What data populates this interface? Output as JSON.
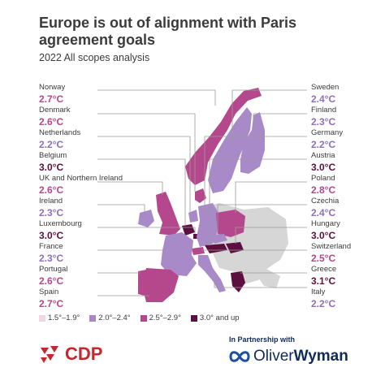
{
  "title": "Europe is out of alignment with Paris agreement goals",
  "subtitle": "2022 All scopes analysis",
  "colors": {
    "band_1": "#f0d6e3",
    "band_2": "#a98ac9",
    "band_3": "#b5478c",
    "band_4": "#5c1040",
    "map_gray": "#d6d6d6",
    "leader_line": "#9a9a9a",
    "text": "#3b3b3b"
  },
  "left_countries": [
    {
      "name": "Norway",
      "value": "2.7°C",
      "band": "band_3"
    },
    {
      "name": "Denmark",
      "value": "2.6°C",
      "band": "band_3"
    },
    {
      "name": "Netherlands",
      "value": "2.2°C",
      "band": "band_2"
    },
    {
      "name": "Belgium",
      "value": "3.0°C",
      "band": "band_4"
    },
    {
      "name": "UK and Northern Ireland",
      "value": "2.6°C",
      "band": "band_3"
    },
    {
      "name": "Ireland",
      "value": "2.3°C",
      "band": "band_2"
    },
    {
      "name": "Luxembourg",
      "value": "3.0°C",
      "band": "band_4"
    },
    {
      "name": "France",
      "value": "2.3°C",
      "band": "band_2"
    },
    {
      "name": "Portugal",
      "value": "2.6°C",
      "band": "band_3"
    },
    {
      "name": "Spain",
      "value": "2.7°C",
      "band": "band_3"
    }
  ],
  "right_countries": [
    {
      "name": "Sweden",
      "value": "2.4°C",
      "band": "band_2"
    },
    {
      "name": "Finland",
      "value": "2.3°C",
      "band": "band_2"
    },
    {
      "name": "Germany",
      "value": "2.2°C",
      "band": "band_2"
    },
    {
      "name": "Austria",
      "value": "3.0°C",
      "band": "band_4"
    },
    {
      "name": "Poland",
      "value": "2.8°C",
      "band": "band_3"
    },
    {
      "name": "Czechia",
      "value": "2.4°C",
      "band": "band_2"
    },
    {
      "name": "Hungary",
      "value": "3.0°C",
      "band": "band_4"
    },
    {
      "name": "Switzerland",
      "value": "2.5°C",
      "band": "band_3"
    },
    {
      "name": "Greece",
      "value": "3.1°C",
      "band": "band_4"
    },
    {
      "name": "Italy",
      "value": "2.2°C",
      "band": "band_2"
    }
  ],
  "legend": [
    {
      "label": "1.5°–1.9°",
      "band": "band_1"
    },
    {
      "label": "2.0°–2.4°",
      "band": "band_2"
    },
    {
      "label": "2.5°–2.9°",
      "band": "band_3"
    },
    {
      "label": "3.0° and up",
      "band": "band_4"
    }
  ],
  "footer": {
    "cdp_logo_text": "CDP",
    "partner_text": "In Partnership with",
    "ow_logo_text_1": "Oliver",
    "ow_logo_text_2": "Wyman",
    "cdp_icon": "cdp-triangles-icon",
    "ow_icon": "oliverwyman-loop-icon"
  }
}
